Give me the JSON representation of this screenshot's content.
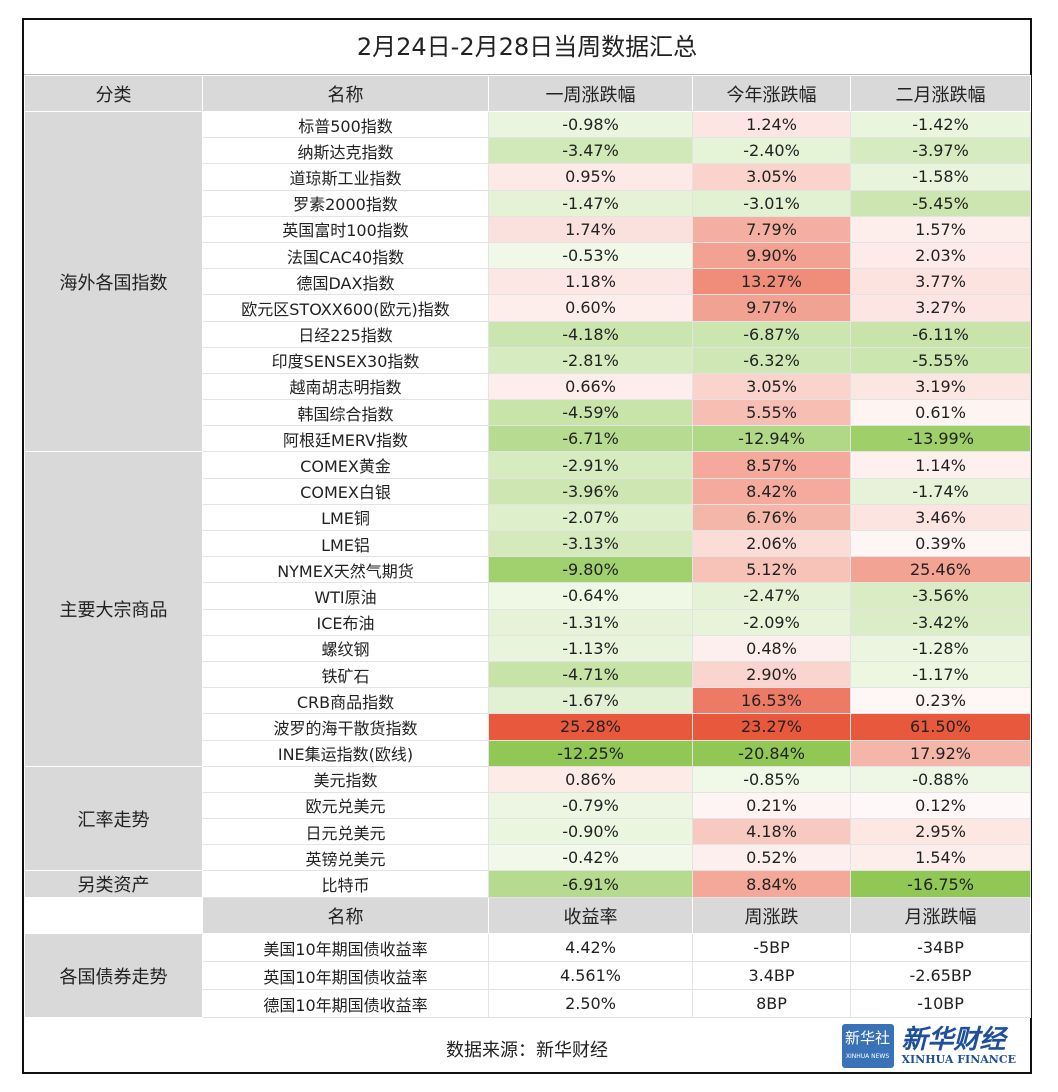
{
  "title": "2月24日-2月28日当周数据汇总",
  "headers": [
    "分类",
    "名称",
    "一周涨跌幅",
    "今年涨跌幅",
    "二月涨跌幅"
  ],
  "groups": [
    {
      "category": "海外各国指数",
      "rows": [
        [
          "标普500指数",
          "-0.98%",
          "1.24%",
          "-1.42%"
        ],
        [
          "纳斯达克指数",
          "-3.47%",
          "-2.40%",
          "-3.97%"
        ],
        [
          "道琼斯工业指数",
          "0.95%",
          "3.05%",
          "-1.58%"
        ],
        [
          "罗素2000指数",
          "-1.47%",
          "-3.01%",
          "-5.45%"
        ],
        [
          "英国富时100指数",
          "1.74%",
          "7.79%",
          "1.57%"
        ],
        [
          "法国CAC40指数",
          "-0.53%",
          "9.90%",
          "2.03%"
        ],
        [
          "德国DAX指数",
          "1.18%",
          "13.27%",
          "3.77%"
        ],
        [
          "欧元区STOXX600(欧元)指数",
          "0.60%",
          "9.77%",
          "3.27%"
        ],
        [
          "日经225指数",
          "-4.18%",
          "-6.87%",
          "-6.11%"
        ],
        [
          "印度SENSEX30指数",
          "-2.81%",
          "-6.32%",
          "-5.55%"
        ],
        [
          "越南胡志明指数",
          "0.66%",
          "3.05%",
          "3.19%"
        ],
        [
          "韩国综合指数",
          "-4.59%",
          "5.55%",
          "0.61%"
        ],
        [
          "阿根廷MERV指数",
          "-6.71%",
          "-12.94%",
          "-13.99%"
        ]
      ]
    },
    {
      "category": "主要大宗商品",
      "rows": [
        [
          "COMEX黄金",
          "-2.91%",
          "8.57%",
          "1.14%"
        ],
        [
          "COMEX白银",
          "-3.96%",
          "8.42%",
          "-1.74%"
        ],
        [
          "LME铜",
          "-2.07%",
          "6.76%",
          "3.46%"
        ],
        [
          "LME铝",
          "-3.13%",
          "2.06%",
          "0.39%"
        ],
        [
          "NYMEX天然气期货",
          "-9.80%",
          "5.12%",
          "25.46%"
        ],
        [
          "WTI原油",
          "-0.64%",
          "-2.47%",
          "-3.56%"
        ],
        [
          "ICE布油",
          "-1.31%",
          "-2.09%",
          "-3.42%"
        ],
        [
          "螺纹钢",
          "-1.13%",
          "0.48%",
          "-1.28%"
        ],
        [
          "铁矿石",
          "-4.71%",
          "2.90%",
          "-1.17%"
        ],
        [
          "CRB商品指数",
          "-1.67%",
          "16.53%",
          "0.23%"
        ],
        [
          "波罗的海干散货指数",
          "25.28%",
          "23.27%",
          "61.50%"
        ],
        [
          "INE集运指数(欧线)",
          "-12.25%",
          "-20.84%",
          "17.92%"
        ]
      ]
    },
    {
      "category": "汇率走势",
      "rows": [
        [
          "美元指数",
          "0.86%",
          "-0.85%",
          "-0.88%"
        ],
        [
          "欧元兑美元",
          "-0.79%",
          "0.21%",
          "0.12%"
        ],
        [
          "日元兑美元",
          "-0.90%",
          "4.18%",
          "2.95%"
        ],
        [
          "英镑兑美元",
          "-0.42%",
          "0.52%",
          "1.54%"
        ]
      ]
    },
    {
      "category": "另类资产",
      "rows": [
        [
          "比特币",
          "-6.91%",
          "8.84%",
          "-16.75%"
        ]
      ]
    }
  ],
  "bonds": {
    "headers": [
      "名称",
      "收益率",
      "周涨跌",
      "月涨跌幅"
    ],
    "category": "各国债券走势",
    "rows": [
      [
        "美国10年期国债收益率",
        "4.42%",
        "-5BP",
        "-34BP"
      ],
      [
        "英国10年期国债收益率",
        "4.561%",
        "3.4BP",
        "-2.65BP"
      ],
      [
        "德国10年期国债收益率",
        "2.50%",
        "8BP",
        "-10BP"
      ]
    ]
  },
  "source": "数据来源：新华财经",
  "logo": {
    "badge": "新华社",
    "badge_en": "XINHUA NEWS",
    "name": "新华财经",
    "name_en": "XINHUA FINANCE"
  }
}
